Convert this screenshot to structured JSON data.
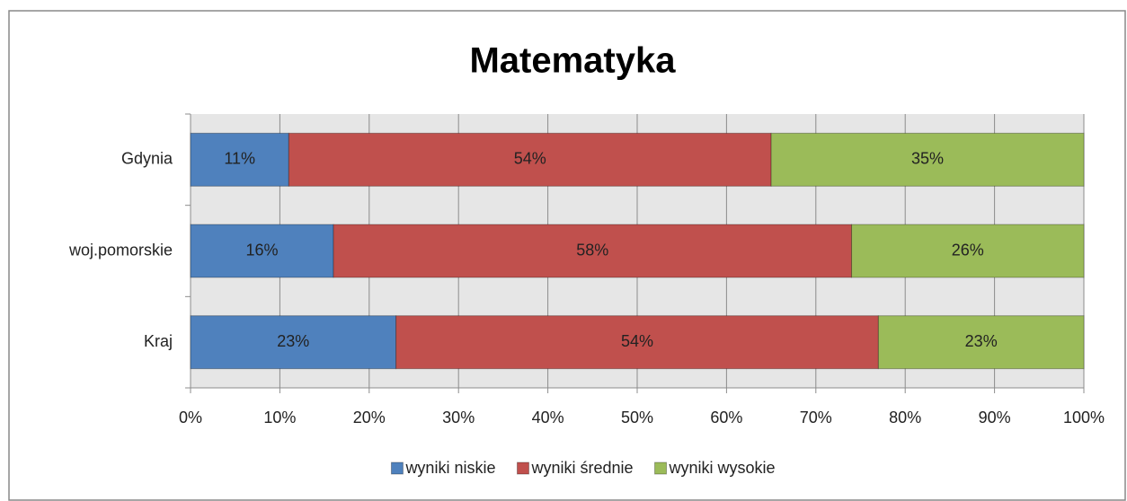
{
  "chart_data": {
    "type": "bar",
    "orientation": "horizontal",
    "stacked": true,
    "title": "Matematyka",
    "categories": [
      "Gdynia",
      "woj.pomorskie",
      "Kraj"
    ],
    "series": [
      {
        "name": "wyniki niskie",
        "color": "#4f81bd",
        "values": [
          11,
          16,
          23
        ],
        "value_labels": [
          "11%",
          "16%",
          "23%"
        ]
      },
      {
        "name": "wyniki średnie",
        "color": "#c0504d",
        "values": [
          54,
          58,
          54
        ],
        "value_labels": [
          "54%",
          "58%",
          "54%"
        ]
      },
      {
        "name": "wyniki wysokie",
        "color": "#9bbb59",
        "values": [
          35,
          26,
          23
        ],
        "value_labels": [
          "35%",
          "26%",
          "23%"
        ]
      }
    ],
    "xlim": [
      0,
      100
    ],
    "xticks": [
      {
        "value": 0,
        "label": "0%"
      },
      {
        "value": 10,
        "label": "10%"
      },
      {
        "value": 20,
        "label": "20%"
      },
      {
        "value": 30,
        "label": "30%"
      },
      {
        "value": 40,
        "label": "40%"
      },
      {
        "value": 50,
        "label": "50%"
      },
      {
        "value": 60,
        "label": "60%"
      },
      {
        "value": 70,
        "label": "70%"
      },
      {
        "value": 80,
        "label": "80%"
      },
      {
        "value": 90,
        "label": "90%"
      },
      {
        "value": 100,
        "label": "100%"
      }
    ],
    "grid": true,
    "legend": "bottom"
  }
}
